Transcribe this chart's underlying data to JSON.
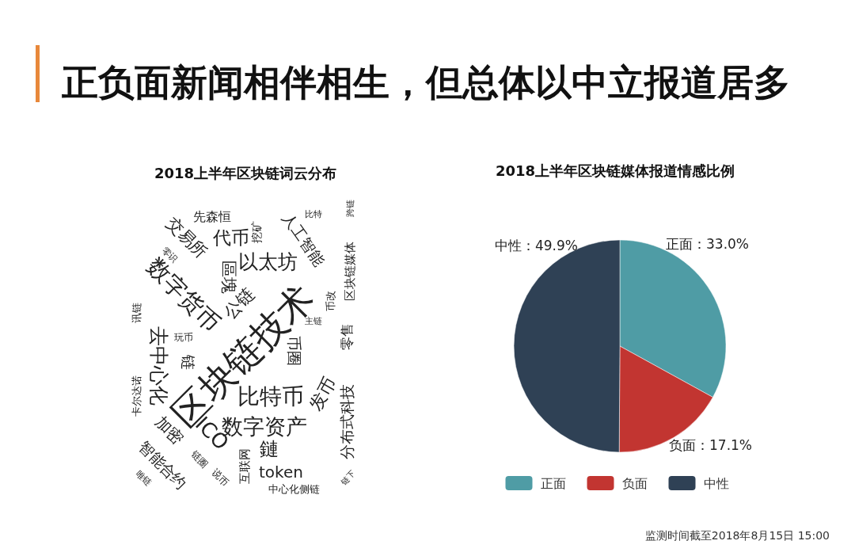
{
  "chart_data": [
    {
      "type": "other",
      "title": "正负面新闻相伴相生，但总体以中立报道居多",
      "subtitle": "2018上半年区块链词云分布",
      "annotations": [
        "区块链技术",
        "比特币",
        "数字资产",
        "数字货币",
        "去中心化",
        "以太坊",
        "交易所",
        "代币",
        "先森恒",
        "挖矿",
        "人工智能",
        "比特",
        "跨链",
        "区块链媒体",
        "币改",
        "主链",
        "公链",
        "區塊",
        "币圈",
        "发币",
        "分布式科技",
        "零售",
        "链下",
        "token",
        "中心化侧链",
        "鏈",
        "互联网",
        "ICO",
        "加密",
        "智能合约",
        "链圈",
        "说币",
        "唯链",
        "链",
        "玩币",
        "零识",
        "卡尔达诺",
        "讯链"
      ]
    },
    {
      "type": "pie",
      "title": "2018上半年区块链媒体报道情感比例",
      "categories": [
        "正面",
        "负面",
        "中性"
      ],
      "values": [
        33.0,
        17.1,
        49.9
      ],
      "colors": [
        "#4f9ca5",
        "#c23531",
        "#2f4155"
      ],
      "value_labels": [
        "正面：33.0%",
        "负面：17.1%",
        "中性：49.9%"
      ],
      "legend": "bottom",
      "annotations": [
        "监测时间截至2018年8月15日 15:00"
      ]
    }
  ]
}
